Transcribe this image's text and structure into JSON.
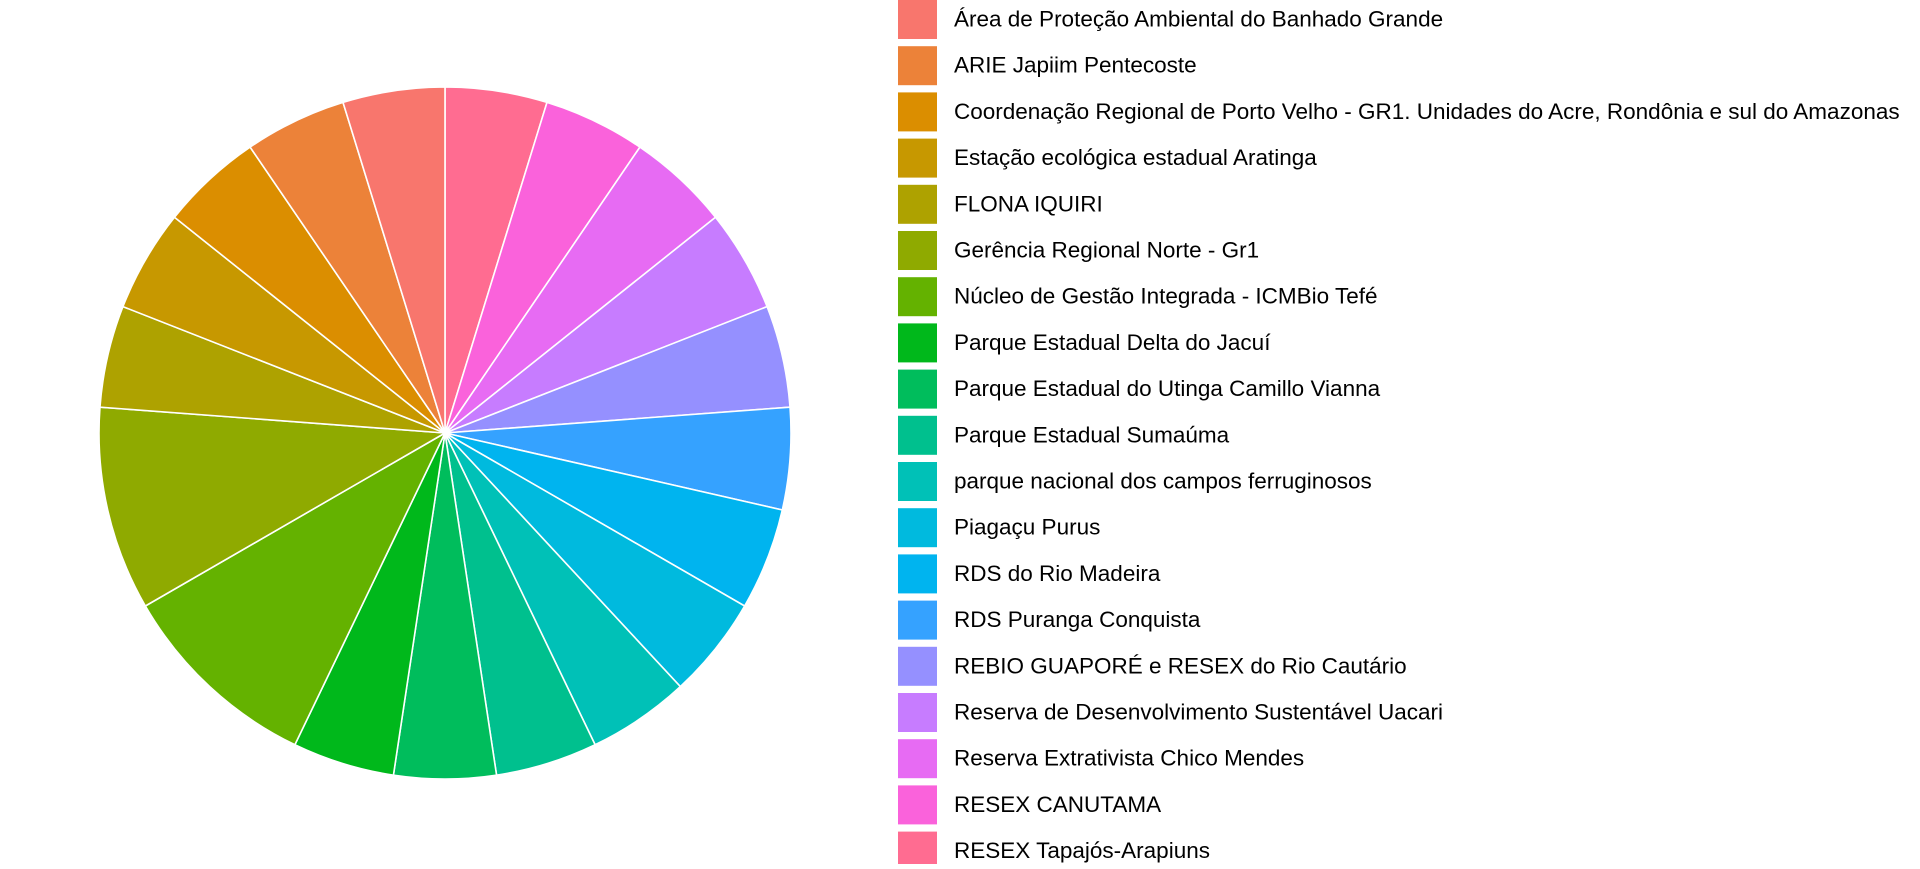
{
  "chart_data": {
    "type": "pie",
    "title": "",
    "legend_position": "right",
    "start_angle_degrees": 0,
    "direction": "clockwise",
    "slices": [
      {
        "label": "Área de Proteção Ambiental do Banhado Grande",
        "value": 1,
        "color": "#F8766D"
      },
      {
        "label": "ARIE Japiim Pentecoste",
        "value": 1,
        "color": "#EC8239"
      },
      {
        "label": "Coordenação Regional de Porto Velho - GR1. Unidades do Acre, Rondônia e sul do Amazonas",
        "value": 1,
        "color": "#DB8E00"
      },
      {
        "label": "Estação ecológica estadual Aratinga",
        "value": 1,
        "color": "#C79800"
      },
      {
        "label": "FLONA IQUIRI",
        "value": 1,
        "color": "#AEA200"
      },
      {
        "label": "Gerência Regional Norte - Gr1",
        "value": 2,
        "color": "#8FAA00"
      },
      {
        "label": "Núcleo de Gestão Integrada - ICMBio Tefé",
        "value": 2,
        "color": "#64B200"
      },
      {
        "label": "Parque Estadual Delta do Jacuí",
        "value": 1,
        "color": "#00B81B"
      },
      {
        "label": "Parque Estadual do Utinga Camillo Vianna",
        "value": 1,
        "color": "#00BD5C"
      },
      {
        "label": "Parque Estadual Sumaúma",
        "value": 1,
        "color": "#00C08E"
      },
      {
        "label": "parque nacional dos campos ferruginosos",
        "value": 1,
        "color": "#00C1B7"
      },
      {
        "label": "Piagaçu Purus",
        "value": 1,
        "color": "#00BADE"
      },
      {
        "label": "RDS do Rio Madeira",
        "value": 1,
        "color": "#00B4EF"
      },
      {
        "label": "RDS Puranga Conquista",
        "value": 1,
        "color": "#35A2FF"
      },
      {
        "label": "REBIO GUAPORÉ e RESEX do Rio Cautário",
        "value": 1,
        "color": "#9590FF"
      },
      {
        "label": "Reserva de Desenvolvimento Sustentável Uacari",
        "value": 1,
        "color": "#C77CFF"
      },
      {
        "label": "Reserva Extrativista Chico Mendes",
        "value": 1,
        "color": "#E76BF3"
      },
      {
        "label": "RESEX CANUTAMA",
        "value": 1,
        "color": "#FA62DB"
      },
      {
        "label": "RESEX Tapajós-Arapiuns",
        "value": 1,
        "color": "#FF6C91"
      }
    ]
  }
}
